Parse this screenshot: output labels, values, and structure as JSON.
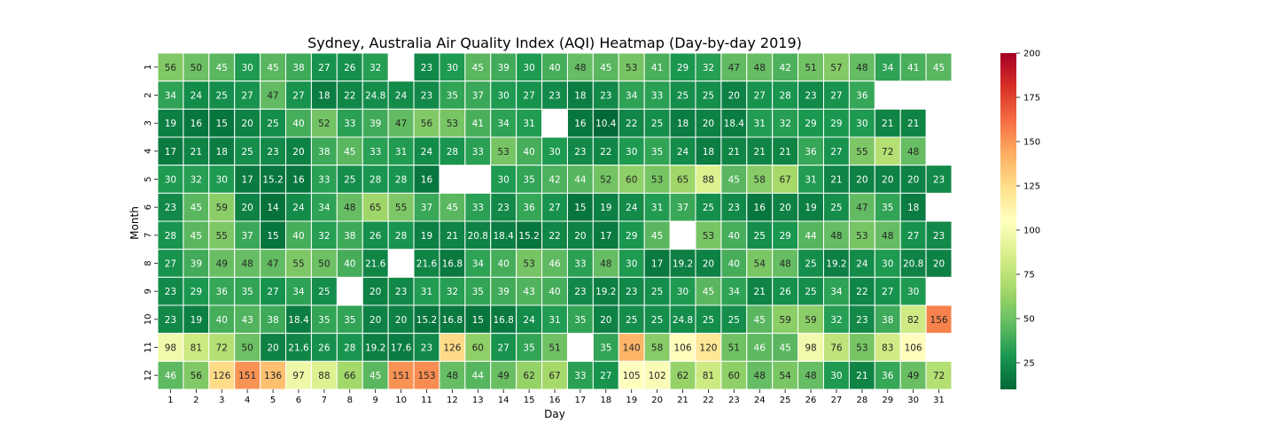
{
  "chart_data": {
    "type": "heatmap",
    "title": "Sydney, Australia Air Quality Index (AQI) Heatmap (Day-by-day 2019)",
    "xlabel": "Day",
    "ylabel": "Month",
    "x_categories": [
      "1",
      "2",
      "3",
      "4",
      "5",
      "6",
      "7",
      "8",
      "9",
      "10",
      "11",
      "12",
      "13",
      "14",
      "15",
      "16",
      "17",
      "18",
      "19",
      "20",
      "21",
      "22",
      "23",
      "24",
      "25",
      "26",
      "27",
      "28",
      "29",
      "30",
      "31"
    ],
    "y_categories": [
      "1",
      "2",
      "3",
      "4",
      "5",
      "6",
      "7",
      "8",
      "9",
      "10",
      "11",
      "12"
    ],
    "values": [
      [
        56,
        50,
        45,
        30,
        45,
        38,
        27,
        26,
        32,
        null,
        23,
        30,
        45,
        39,
        30,
        40,
        48,
        45,
        53,
        41,
        29,
        32,
        47,
        48,
        42,
        51,
        57,
        48,
        34,
        41,
        45
      ],
      [
        34,
        24,
        25,
        27,
        47,
        27,
        18,
        22,
        24.8,
        24,
        23,
        35,
        37,
        30,
        27,
        23,
        18,
        23,
        34,
        33,
        25,
        25,
        20,
        27,
        28,
        23,
        27,
        36,
        null,
        null,
        null
      ],
      [
        19,
        16,
        15,
        20,
        25,
        40,
        52,
        33,
        39,
        47,
        56,
        53,
        41,
        34,
        31,
        null,
        16,
        10.4,
        22,
        25,
        18,
        20,
        18.4,
        31,
        32,
        29,
        29,
        30,
        21,
        21,
        null
      ],
      [
        17,
        21,
        18,
        25,
        23,
        20,
        38,
        45,
        33,
        31,
        24,
        28,
        33,
        53,
        40,
        30,
        23,
        22,
        30,
        35,
        24,
        18,
        21,
        21,
        21,
        36,
        27,
        55,
        72,
        48,
        null
      ],
      [
        30,
        32,
        30,
        17,
        15.2,
        16,
        33,
        25,
        28,
        28,
        16,
        null,
        null,
        30,
        35,
        42,
        44,
        52,
        60,
        53,
        65,
        88,
        45,
        58,
        67,
        31,
        21,
        20,
        20,
        20,
        23
      ],
      [
        23,
        45,
        59,
        20,
        14,
        24,
        34,
        48,
        65,
        55,
        37,
        45,
        33,
        23,
        36,
        27,
        15,
        19,
        24,
        31,
        37,
        25,
        23,
        16,
        20,
        19,
        25,
        47,
        35,
        18,
        null
      ],
      [
        28,
        45,
        55,
        37,
        15,
        40,
        32,
        38,
        26,
        28,
        19,
        21,
        20.8,
        18.4,
        15.2,
        22,
        20,
        17,
        29,
        45,
        null,
        53,
        40,
        25,
        29,
        44,
        48,
        53,
        48,
        27,
        23
      ],
      [
        27,
        39,
        49,
        48,
        47,
        55,
        50,
        40,
        21.6,
        null,
        21.6,
        16.8,
        34,
        40,
        53,
        46,
        33,
        48,
        30,
        17,
        19.2,
        20,
        40,
        54,
        48,
        25,
        19.2,
        24,
        30,
        20.8,
        20
      ],
      [
        23,
        29,
        36,
        35,
        27,
        34,
        25,
        null,
        20,
        23,
        31,
        32,
        35,
        39,
        43,
        40,
        23,
        19.2,
        23,
        25,
        30,
        45,
        34,
        21,
        26,
        25,
        34,
        22,
        27,
        30,
        null
      ],
      [
        23,
        19,
        40,
        43,
        38,
        18.4,
        35,
        35,
        20,
        20,
        15.2,
        16.8,
        15,
        16.8,
        24,
        31,
        35,
        20,
        25,
        25,
        24.8,
        25,
        25,
        45,
        59,
        59,
        32,
        23,
        38,
        82,
        156
      ],
      [
        98,
        81,
        72,
        50,
        20,
        21.6,
        26,
        28,
        19.2,
        17.6,
        23,
        126,
        60,
        27,
        35,
        51,
        null,
        35,
        140,
        58,
        106,
        120,
        51,
        46,
        45,
        98,
        76,
        53,
        83,
        106,
        null
      ],
      [
        46,
        56,
        126,
        151,
        136,
        97,
        88,
        66,
        45,
        151,
        153,
        48,
        44,
        49,
        62,
        67,
        33,
        27,
        105,
        102,
        62,
        81,
        60,
        48,
        54,
        48,
        30,
        21,
        36,
        49,
        72
      ]
    ],
    "colorbar": {
      "colormap": "RdYlGn_r",
      "range": [
        10,
        200
      ],
      "ticks": [
        25,
        50,
        75,
        100,
        125,
        150,
        175,
        200
      ]
    }
  }
}
